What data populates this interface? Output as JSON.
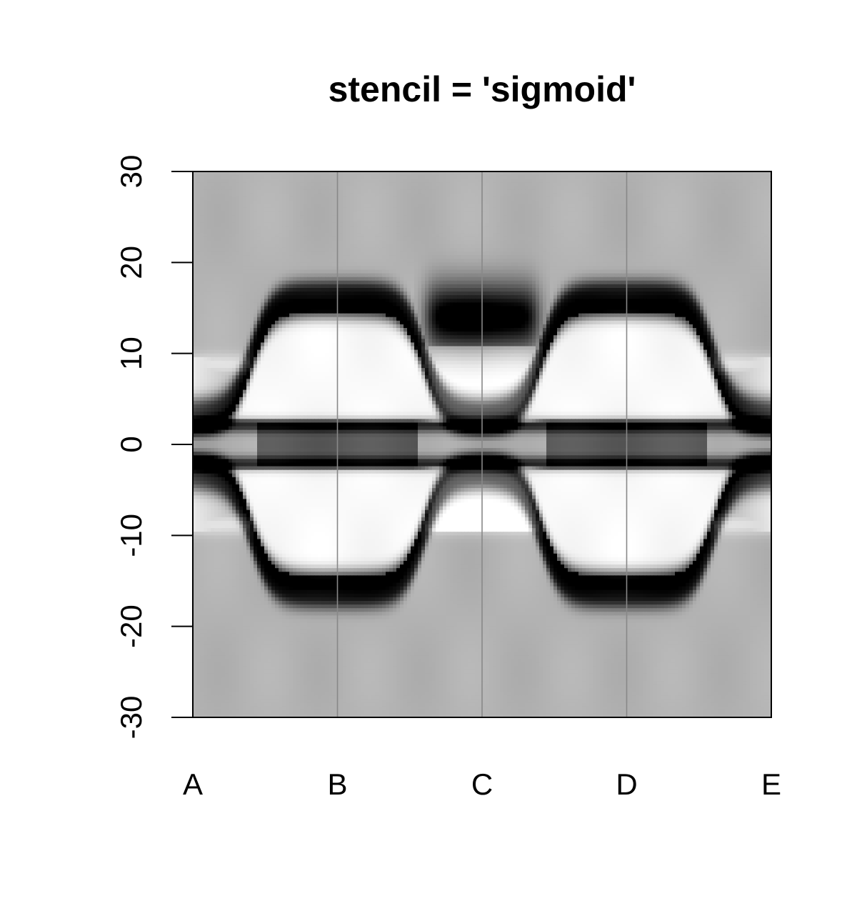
{
  "chart_data": {
    "type": "heatmap",
    "title": "stencil = 'sigmoid'",
    "xlabel": "",
    "ylabel": "",
    "x_categories": [
      "A",
      "B",
      "C",
      "D",
      "E"
    ],
    "ylim": [
      -30,
      30
    ],
    "y_ticks": [
      -30,
      -20,
      -10,
      0,
      10,
      20,
      30
    ],
    "y_tick_labels": [
      "-30",
      "-20",
      "-10",
      "0",
      "10",
      "20",
      "30"
    ],
    "colormap": "grayscale (white = low, black = high)",
    "background_level": 0.3,
    "vertical_lines_at": [
      "B",
      "C",
      "D"
    ],
    "grid": false,
    "legend": "none",
    "features": [
      {
        "shape": "outer band pair",
        "y_range": [
          -16,
          16
        ],
        "x_span": [
          "A+0.45",
          "C-0.45"
        ],
        "center": "B"
      },
      {
        "shape": "outer band pair",
        "y_range": [
          -16,
          16
        ],
        "x_span": [
          "C+0.45",
          "E-0.45"
        ],
        "center": "D"
      },
      {
        "shape": "inner band pair",
        "y_range": [
          -2,
          2
        ],
        "x_span": [
          "A",
          "E"
        ]
      },
      {
        "shape": "dark blob",
        "y_range": [
          12,
          18
        ],
        "x_span": [
          "C-0.45",
          "C+0.45"
        ]
      },
      {
        "shape": "bright gap",
        "y_range": [
          -9,
          9
        ],
        "x_span": [
          "A",
          "E"
        ]
      }
    ]
  }
}
